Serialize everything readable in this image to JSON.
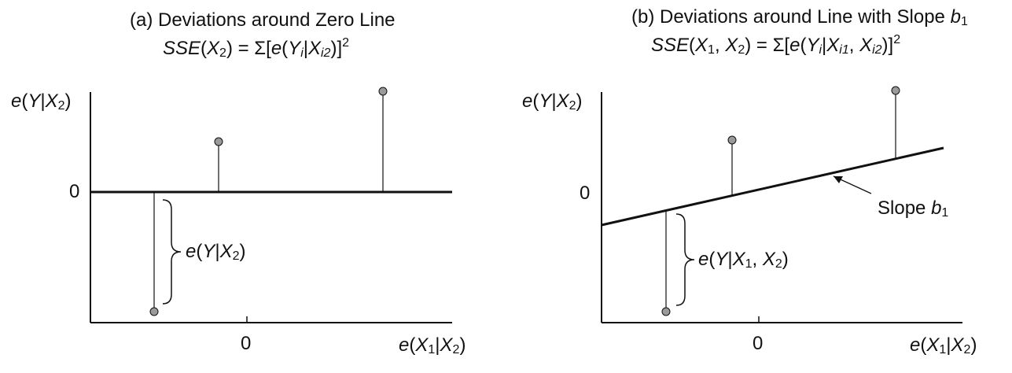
{
  "panel_a": {
    "title": "(a) Deviations around Zero Line",
    "formula": {
      "lhs": "SSE",
      "arg": "X",
      "arg_sub": "2",
      "eq": " = Σ[",
      "e": "e",
      "Y": "Y",
      "Yi": "i",
      "X": "X",
      "Xsub": "i2",
      "close": ")]",
      "power": "2"
    },
    "y_axis_label": {
      "e": "e",
      "Y": "Y",
      "bar": "|",
      "X": "X",
      "sub": "2"
    },
    "y_tick": "0",
    "x_tick": "0",
    "x_axis_label": {
      "e": "e",
      "X1": "X",
      "sub1": "1",
      "bar": "|",
      "X2": "X",
      "sub2": "2"
    },
    "brace_label": {
      "e": "e",
      "Y": "Y",
      "bar": "|",
      "X": "X",
      "sub": "2"
    }
  },
  "panel_b": {
    "title": "(b) Deviations around Line with Slope",
    "title_slope_symbol": "b",
    "title_slope_sub": "1",
    "formula": {
      "lhs": "SSE",
      "a1": "X",
      "s1": "1",
      "a2": "X",
      "s2": "2",
      "eq": " = Σ[",
      "e": "e",
      "Y": "Y",
      "Yi": "i",
      "X1": "X",
      "X1sub": "i1",
      "X2": "X",
      "X2sub": "i2",
      "close": ")]",
      "power": "2"
    },
    "y_axis_label": {
      "e": "e",
      "Y": "Y",
      "bar": "|",
      "X": "X",
      "sub": "2"
    },
    "y_tick": "0",
    "x_tick": "0",
    "x_axis_label": {
      "e": "e",
      "X1": "X",
      "sub1": "1",
      "bar": "|",
      "X2": "X",
      "sub2": "2"
    },
    "brace_label": {
      "e": "e",
      "Y": "Y",
      "bar": "|",
      "X1": "X",
      "sub1": "1",
      "comma": ", ",
      "X2": "X",
      "sub2": "2"
    },
    "slope_label": "Slope",
    "slope_symbol": "b",
    "slope_sub": "1"
  },
  "colors": {
    "ink": "#111111",
    "point_fill": "#9a9a9a"
  }
}
